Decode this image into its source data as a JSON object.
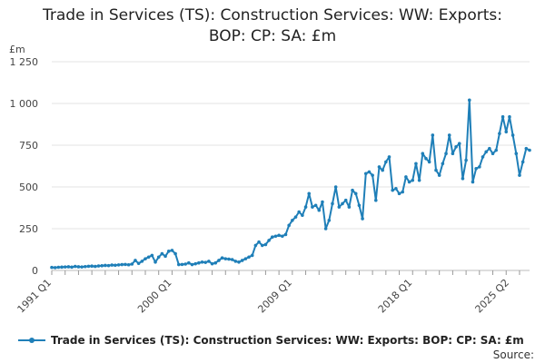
{
  "chart_data": {
    "type": "line",
    "title": "Trade in Services (TS): Construction Services: WW: Exports: BOP: CP: SA: £m",
    "title_lines": [
      "Trade in Services (TS): Construction Services: WW: Exports:",
      "BOP: CP: SA: £m"
    ],
    "ylabel": "£m",
    "ylim": [
      0,
      1250
    ],
    "yticks": [
      0,
      250,
      500,
      750,
      1000,
      1250
    ],
    "ytick_labels": [
      "0",
      "250",
      "500",
      "750",
      "1 000",
      "1 250"
    ],
    "xtick_labels": [
      "1991 Q1",
      "2000 Q1",
      "2009 Q1",
      "2018 Q1",
      "2025 Q2"
    ],
    "xtick_indices": [
      0,
      36,
      72,
      108,
      137
    ],
    "grid": true,
    "legend": "bottom",
    "color": "#1f7fb8",
    "series": [
      {
        "name": "Trade in Services (TS): Construction Services: WW: Exports: BOP: CP: SA: £m",
        "values": [
          18,
          17,
          19,
          20,
          21,
          22,
          20,
          24,
          22,
          21,
          23,
          25,
          26,
          24,
          27,
          28,
          30,
          29,
          32,
          31,
          33,
          35,
          36,
          34,
          38,
          60,
          42,
          55,
          70,
          80,
          90,
          50,
          80,
          100,
          85,
          115,
          120,
          100,
          35,
          36,
          38,
          45,
          35,
          40,
          45,
          50,
          48,
          55,
          40,
          45,
          60,
          75,
          70,
          68,
          65,
          55,
          50,
          60,
          70,
          80,
          90,
          150,
          170,
          150,
          155,
          180,
          200,
          205,
          210,
          205,
          215,
          270,
          300,
          320,
          350,
          330,
          380,
          460,
          380,
          390,
          360,
          410,
          250,
          300,
          400,
          500,
          380,
          400,
          420,
          380,
          480,
          460,
          390,
          310,
          580,
          590,
          570,
          420,
          620,
          600,
          650,
          680,
          480,
          490,
          460,
          470,
          560,
          530,
          540,
          640,
          540,
          700,
          670,
          650,
          810,
          600,
          570,
          640,
          700,
          810,
          700,
          740,
          760,
          550,
          660,
          1020,
          530,
          610,
          620,
          680,
          710,
          730,
          700,
          720,
          820,
          920,
          830,
          920,
          810,
          700,
          570,
          650,
          730,
          720
        ]
      }
    ]
  },
  "legend_label": "Trade in Services (TS): Construction Services: WW: Exports: BOP: CP: SA: £m",
  "source_label": "Source:"
}
